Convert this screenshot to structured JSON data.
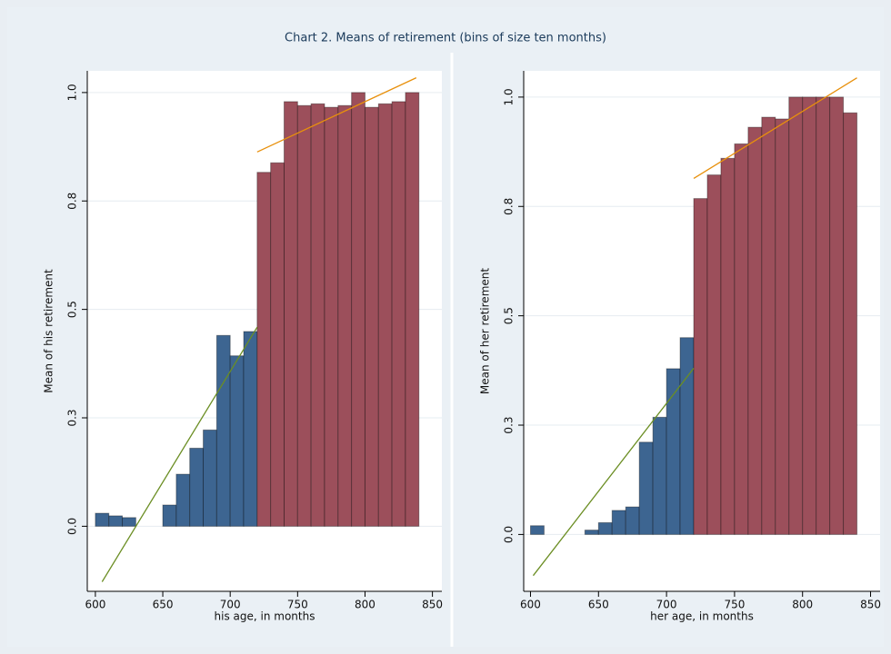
{
  "title": "Chart 2. Means of retirement (bins of size ten months)",
  "chart_data": [
    {
      "type": "histogram",
      "xlabel": "his age, in months",
      "ylabel": "Mean of his retirement",
      "xlim": [
        594,
        857
      ],
      "ylim": [
        -0.15,
        1.05
      ],
      "xticks": [
        600,
        650,
        700,
        750,
        800,
        850
      ],
      "yticks": [
        {
          "value": 0,
          "label": "0.0"
        },
        {
          "value": 0.25,
          "label": "0.3"
        },
        0.5,
        {
          "value": 0.75,
          "label": "0.8"
        },
        {
          "value": 1,
          "label": "1.0"
        }
      ],
      "grid": true,
      "series": [
        {
          "color": "#3d6591",
          "bins": [
            600,
            610,
            620,
            630,
            640,
            650,
            660,
            670,
            680,
            690,
            700,
            710,
            720
          ],
          "values": [
            0.03,
            0.024,
            0.02,
            null,
            null,
            0.049,
            0.12,
            0.18,
            0.222,
            0.44,
            0.393,
            0.449
          ]
        },
        {
          "color": "#9c4f5b",
          "bins": [
            720,
            730,
            740,
            750,
            760,
            770,
            780,
            790,
            800,
            810,
            820,
            830,
            840
          ],
          "values": [
            0.816,
            0.838,
            0.979,
            0.97,
            0.974,
            0.966,
            0.97,
            1.0,
            0.966,
            0.974,
            0.979,
            1.0
          ]
        }
      ],
      "fits": [
        {
          "color": "#6b8e23",
          "x": [
            605,
            720
          ],
          "values": [
            -0.128,
            0.459
          ]
        },
        {
          "color": "#e8900c",
          "x": [
            720,
            838
          ],
          "values": [
            0.863,
            1.034
          ]
        }
      ]
    },
    {
      "type": "histogram",
      "xlabel": "her age, in months",
      "ylabel": "Mean of her retirement",
      "xlim": [
        595,
        857
      ],
      "ylim": [
        -0.13,
        1.06
      ],
      "xticks": [
        600,
        650,
        700,
        750,
        800,
        850
      ],
      "yticks": [
        {
          "value": 0,
          "label": "0.0"
        },
        {
          "value": 0.25,
          "label": "0.3"
        },
        0.5,
        {
          "value": 0.75,
          "label": "0.8"
        },
        {
          "value": 1,
          "label": "1.0"
        }
      ],
      "grid": true,
      "series": [
        {
          "color": "#3d6591",
          "bins": [
            600,
            610,
            620,
            630,
            640,
            650,
            660,
            670,
            680,
            690,
            700,
            710,
            720
          ],
          "values": [
            0.02,
            null,
            null,
            null,
            0.01,
            0.027,
            0.055,
            0.063,
            0.211,
            0.268,
            0.379,
            0.45
          ]
        },
        {
          "color": "#9c4f5b",
          "bins": [
            720,
            730,
            740,
            750,
            760,
            770,
            780,
            790,
            800,
            810,
            820,
            830,
            840
          ],
          "values": [
            0.768,
            0.822,
            0.86,
            0.893,
            0.931,
            0.954,
            0.95,
            1.0,
            1.0,
            1.0,
            1.0,
            0.964
          ]
        }
      ],
      "fits": [
        {
          "color": "#6b8e23",
          "x": [
            602,
            720
          ],
          "values": [
            -0.094,
            0.38
          ]
        },
        {
          "color": "#e8900c",
          "x": [
            720,
            840
          ],
          "values": [
            0.814,
            1.044
          ]
        }
      ]
    }
  ]
}
